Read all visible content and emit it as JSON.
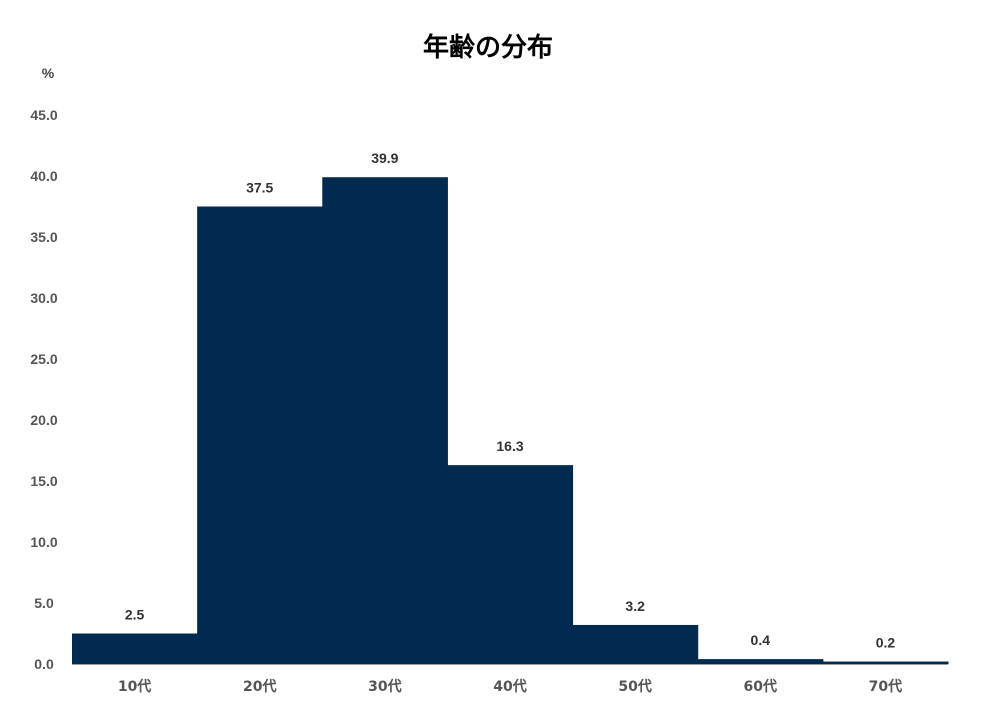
{
  "chart_data": {
    "type": "bar",
    "title": "年齢の分布",
    "ylabel": "%",
    "xlabel": "",
    "categories": [
      "10代",
      "20代",
      "30代",
      "40代",
      "50代",
      "60代",
      "70代"
    ],
    "values": [
      2.5,
      37.5,
      39.9,
      16.3,
      3.2,
      0.4,
      0.2
    ],
    "value_labels": [
      "2.5",
      "37.5",
      "39.9",
      "16.3",
      "3.2",
      "0.4",
      "0.2"
    ],
    "ylim": [
      0,
      45
    ],
    "yticks": [
      "0.0",
      "5.0",
      "10.0",
      "15.0",
      "20.0",
      "25.0",
      "30.0",
      "35.0",
      "40.0",
      "45.0"
    ],
    "grid": false,
    "legend": "none",
    "bar_color": "#002a4f"
  }
}
